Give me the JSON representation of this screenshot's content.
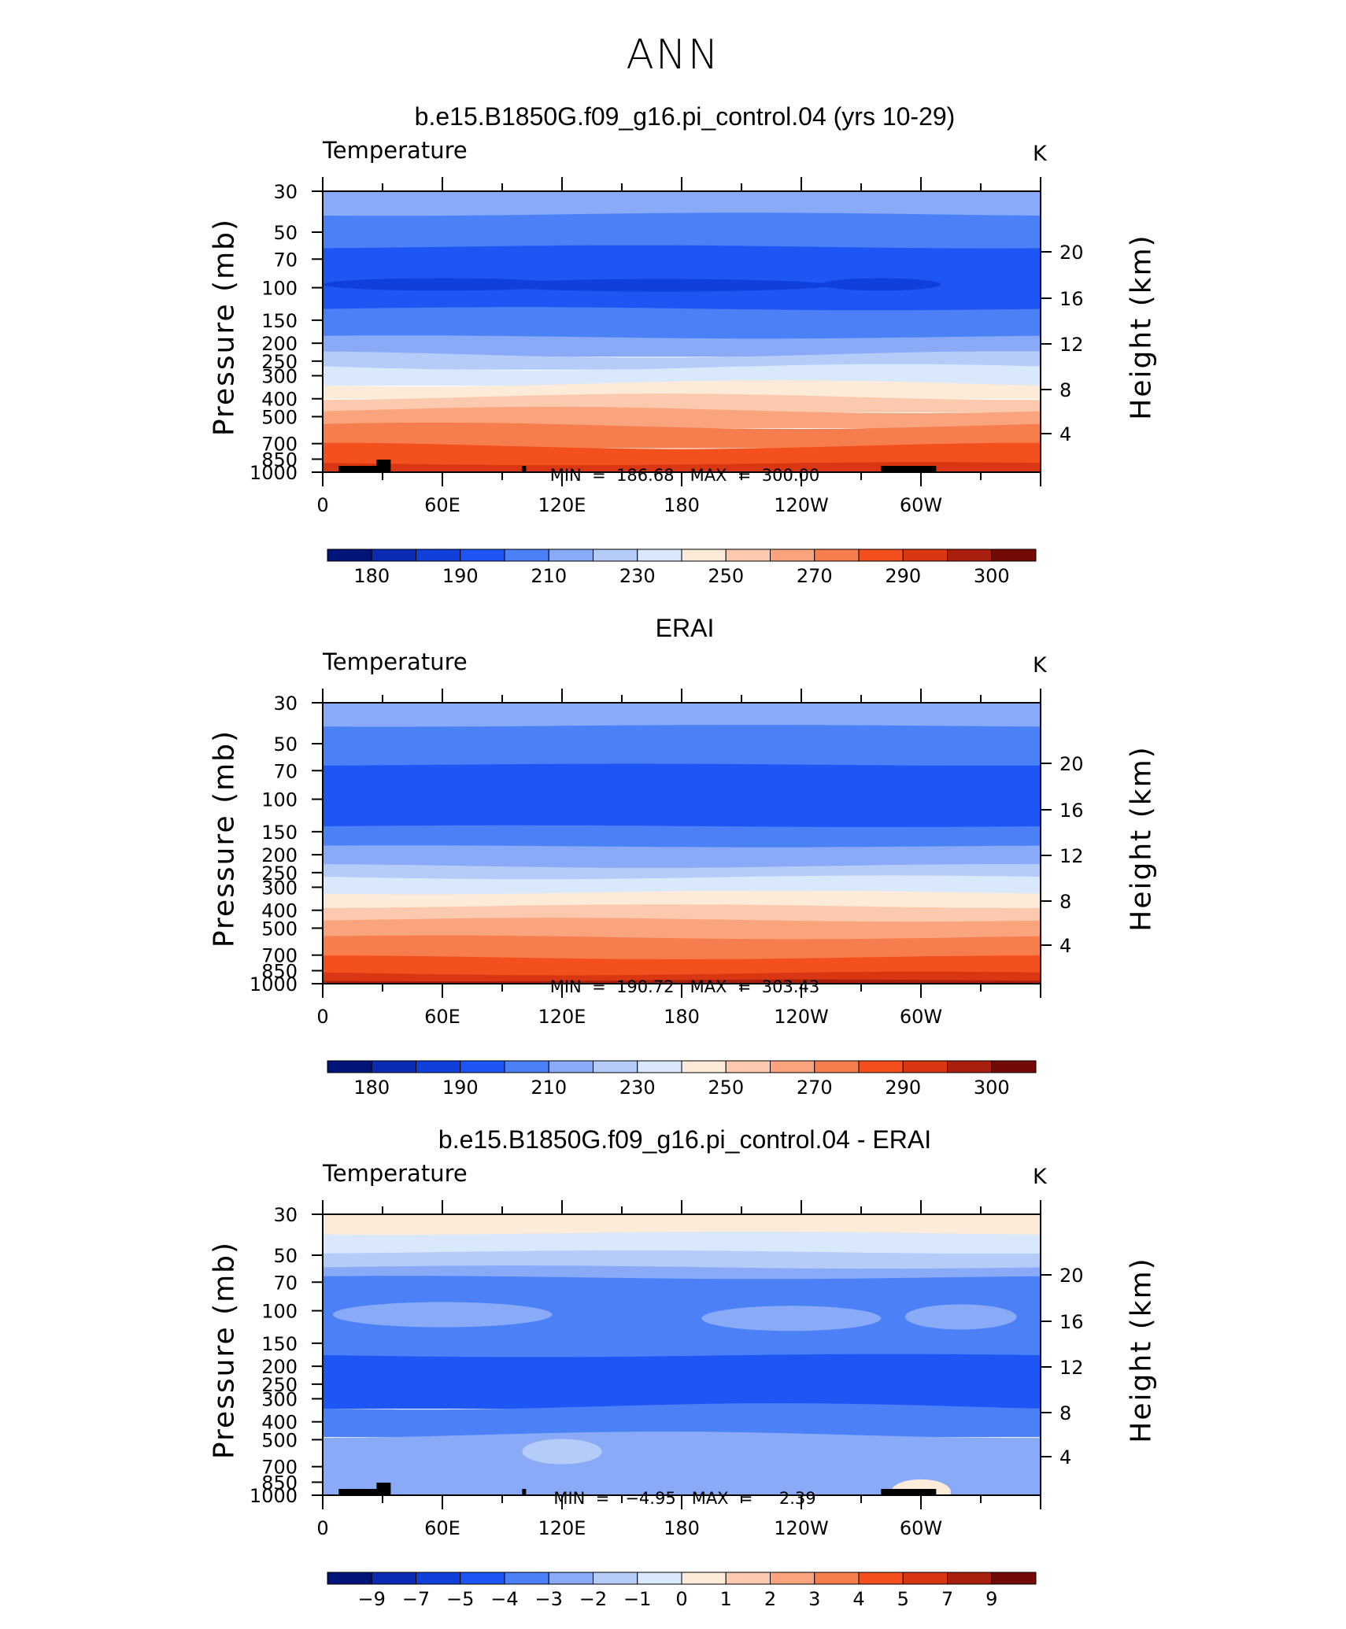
{
  "page_title": "ANN",
  "y_axis_left_title": "Pressure (mb)",
  "y_axis_right_title": "Height (km)",
  "chart_data": [
    {
      "type": "heatmap",
      "title": "b.e15.B1850G.f09_g16.pi_control.04 (yrs 10-29)",
      "variable": "Temperature",
      "units": "K",
      "min_label": "MIN  =  186.68",
      "max_label": "MAX  =  300.00",
      "min": 186.68,
      "max": 300.0,
      "x_ticks": [
        "0",
        "60E",
        "120E",
        "180",
        "120W",
        "60W"
      ],
      "pressure_ticks": [
        30,
        50,
        70,
        100,
        150,
        200,
        250,
        300,
        400,
        500,
        700,
        850,
        1000
      ],
      "height_ticks": [
        4,
        8,
        12,
        16,
        20
      ],
      "colorbar_labels": [
        "180",
        "190",
        "210",
        "230",
        "250",
        "270",
        "290",
        "300"
      ],
      "colorbar_colors": [
        "#00147a",
        "#0a2cb4",
        "#1040dc",
        "#1e56f5",
        "#4b80f7",
        "#88aaf7",
        "#b5ccf8",
        "#d9e8fb",
        "#fdebd9",
        "#fbc9ad",
        "#f9a47c",
        "#f67d4e",
        "#f3501e",
        "#d93614",
        "#a8200d",
        "#730a05"
      ],
      "bands": [
        {
          "p_top": 30,
          "p_bot": 40,
          "color": "#88aaf7"
        },
        {
          "p_top": 40,
          "p_bot": 60,
          "color": "#4b80f7"
        },
        {
          "p_top": 60,
          "p_bot": 130,
          "color": "#1e56f5"
        },
        {
          "p_top": 130,
          "p_bot": 185,
          "color": "#4b80f7"
        },
        {
          "p_top": 185,
          "p_bot": 230,
          "color": "#88aaf7"
        },
        {
          "p_top": 230,
          "p_bot": 270,
          "color": "#b5ccf8"
        },
        {
          "p_top": 270,
          "p_bot": 330,
          "color": "#d9e8fb"
        },
        {
          "p_top": 330,
          "p_bot": 390,
          "color": "#fdebd9"
        },
        {
          "p_top": 390,
          "p_bot": 460,
          "color": "#fbc9ad"
        },
        {
          "p_top": 460,
          "p_bot": 560,
          "color": "#f9a47c"
        },
        {
          "p_top": 560,
          "p_bot": 720,
          "color": "#f67d4e"
        },
        {
          "p_top": 720,
          "p_bot": 900,
          "color": "#f3501e"
        },
        {
          "p_top": 900,
          "p_bot": 1000,
          "color": "#d93614"
        }
      ],
      "features": [
        {
          "kind": "ellipse",
          "lon": 170,
          "p": 97,
          "rx_deg": 85,
          "color": "#1040dc"
        },
        {
          "kind": "ellipse",
          "lon": 60,
          "p": 96,
          "rx_deg": 60,
          "color": "#1040dc"
        },
        {
          "kind": "ellipse",
          "lon": 280,
          "p": 96,
          "rx_deg": 30,
          "color": "#1040dc"
        }
      ],
      "topography": true
    },
    {
      "type": "heatmap",
      "title": "ERAI",
      "variable": "Temperature",
      "units": "K",
      "min_label": "MIN  =  190.72",
      "max_label": "MAX  =  303.43",
      "min": 190.72,
      "max": 303.43,
      "x_ticks": [
        "0",
        "60E",
        "120E",
        "180",
        "120W",
        "60W"
      ],
      "pressure_ticks": [
        30,
        50,
        70,
        100,
        150,
        200,
        250,
        300,
        400,
        500,
        700,
        850,
        1000
      ],
      "height_ticks": [
        4,
        8,
        12,
        16,
        20
      ],
      "colorbar_labels": [
        "180",
        "190",
        "210",
        "230",
        "250",
        "270",
        "290",
        "300"
      ],
      "colorbar_colors": [
        "#00147a",
        "#0a2cb4",
        "#1040dc",
        "#1e56f5",
        "#4b80f7",
        "#88aaf7",
        "#b5ccf8",
        "#d9e8fb",
        "#fdebd9",
        "#fbc9ad",
        "#f9a47c",
        "#f67d4e",
        "#f3501e",
        "#d93614",
        "#a8200d",
        "#730a05"
      ],
      "bands": [
        {
          "p_top": 30,
          "p_bot": 40,
          "color": "#88aaf7"
        },
        {
          "p_top": 40,
          "p_bot": 65,
          "color": "#4b80f7"
        },
        {
          "p_top": 65,
          "p_bot": 140,
          "color": "#1e56f5"
        },
        {
          "p_top": 140,
          "p_bot": 180,
          "color": "#4b80f7"
        },
        {
          "p_top": 180,
          "p_bot": 230,
          "color": "#88aaf7"
        },
        {
          "p_top": 230,
          "p_bot": 265,
          "color": "#b5ccf8"
        },
        {
          "p_top": 265,
          "p_bot": 320,
          "color": "#d9e8fb"
        },
        {
          "p_top": 320,
          "p_bot": 380,
          "color": "#fdebd9"
        },
        {
          "p_top": 380,
          "p_bot": 450,
          "color": "#fbc9ad"
        },
        {
          "p_top": 450,
          "p_bot": 560,
          "color": "#f9a47c"
        },
        {
          "p_top": 560,
          "p_bot": 720,
          "color": "#f67d4e"
        },
        {
          "p_top": 720,
          "p_bot": 880,
          "color": "#f3501e"
        },
        {
          "p_top": 880,
          "p_bot": 960,
          "color": "#d93614"
        },
        {
          "p_top": 960,
          "p_bot": 1000,
          "color": "#a8200d"
        }
      ],
      "features": [],
      "topography": false
    },
    {
      "type": "heatmap",
      "title": "b.e15.B1850G.f09_g16.pi_control.04 - ERAI",
      "variable": "Temperature",
      "units": "K",
      "min_label": "MIN  =   −4.95   MAX  =     2.39",
      "max_label": "",
      "min": -4.95,
      "max": 2.39,
      "x_ticks": [
        "0",
        "60E",
        "120E",
        "180",
        "120W",
        "60W"
      ],
      "pressure_ticks": [
        30,
        50,
        70,
        100,
        150,
        200,
        250,
        300,
        400,
        500,
        700,
        850,
        1000
      ],
      "height_ticks": [
        4,
        8,
        12,
        16,
        20
      ],
      "colorbar_labels": [
        "−9",
        "−7",
        "−5",
        "−4",
        "−3",
        "−2",
        "−1",
        "0",
        "1",
        "2",
        "3",
        "4",
        "5",
        "7",
        "9"
      ],
      "colorbar_colors": [
        "#00147a",
        "#0a2cb4",
        "#1040dc",
        "#1e56f5",
        "#4b80f7",
        "#88aaf7",
        "#b5ccf8",
        "#d9e8fb",
        "#fdebd9",
        "#fbc9ad",
        "#f9a47c",
        "#f67d4e",
        "#f3501e",
        "#d93614",
        "#a8200d",
        "#730a05"
      ],
      "bands": [
        {
          "p_top": 30,
          "p_bot": 38,
          "color": "#fdebd9"
        },
        {
          "p_top": 38,
          "p_bot": 48,
          "color": "#d9e8fb"
        },
        {
          "p_top": 48,
          "p_bot": 58,
          "color": "#b5ccf8"
        },
        {
          "p_top": 58,
          "p_bot": 66,
          "color": "#88aaf7"
        },
        {
          "p_top": 66,
          "p_bot": 90,
          "color": "#4b80f7"
        },
        {
          "p_top": 90,
          "p_bot": 175,
          "color": "#4b80f7"
        },
        {
          "p_top": 175,
          "p_bot": 330,
          "color": "#1e56f5"
        },
        {
          "p_top": 330,
          "p_bot": 470,
          "color": "#4b80f7"
        },
        {
          "p_top": 470,
          "p_bot": 1000,
          "color": "#88aaf7"
        }
      ],
      "features": [
        {
          "kind": "ellipse",
          "lon": 60,
          "p": 105,
          "rx_deg": 55,
          "color": "#88aaf7"
        },
        {
          "kind": "ellipse",
          "lon": 235,
          "p": 110,
          "rx_deg": 45,
          "color": "#88aaf7"
        },
        {
          "kind": "ellipse",
          "lon": 320,
          "p": 108,
          "rx_deg": 28,
          "color": "#88aaf7"
        },
        {
          "kind": "ellipse",
          "lon": 120,
          "p": 580,
          "rx_deg": 20,
          "color": "#b5ccf8"
        },
        {
          "kind": "ellipse",
          "lon": 300,
          "p": 960,
          "rx_deg": 15,
          "color": "#fdebd9"
        }
      ],
      "topography": true
    }
  ]
}
